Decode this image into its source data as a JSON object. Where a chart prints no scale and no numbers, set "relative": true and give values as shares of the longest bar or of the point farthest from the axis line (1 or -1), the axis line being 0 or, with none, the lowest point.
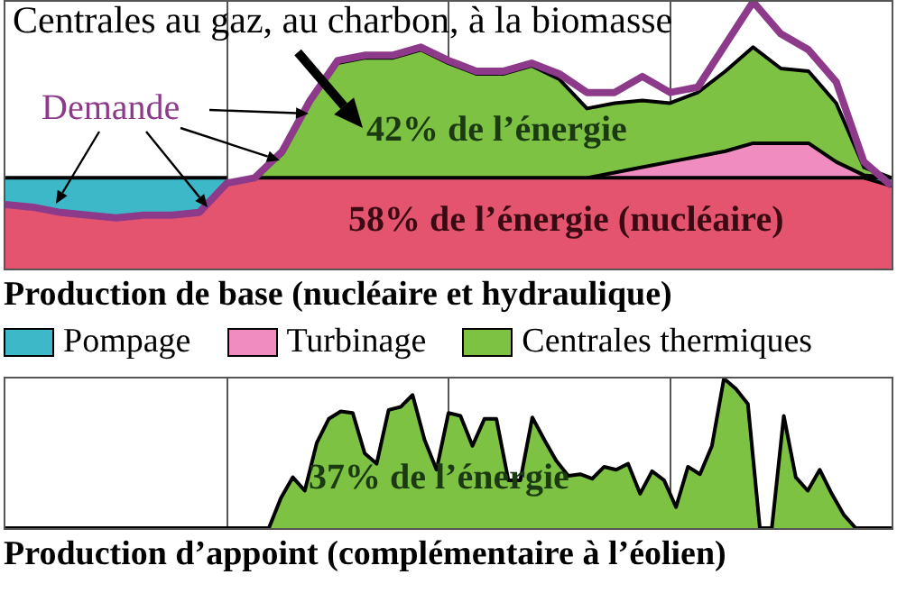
{
  "chart_data": [
    {
      "type": "area",
      "relative": true,
      "title": "Production de base (nucléaire et hydraulique)",
      "categories": [
        null,
        null,
        null,
        null,
        null,
        null,
        null,
        null,
        null,
        null,
        null,
        null,
        null,
        null,
        null,
        null,
        null,
        null,
        null,
        null,
        null,
        null,
        null,
        null,
        null,
        null,
        null,
        null,
        null,
        null,
        null,
        null,
        null
      ],
      "series": [
        {
          "name": "Centrales thermiques",
          "color": "#7dc242",
          "values": [
            null,
            null,
            null,
            null,
            null,
            null,
            null,
            null,
            null,
            0.34,
            0.43,
            0.62,
            0.77,
            0.79,
            0.79,
            0.82,
            0.77,
            0.73,
            0.73,
            0.76,
            0.71,
            0.6,
            0.62,
            0.63,
            0.62,
            0.66,
            0.74,
            0.83,
            0.75,
            0.74,
            0.62,
            0.38,
            0.34
          ]
        },
        {
          "name": "Turbinage",
          "color": "#f08cc0",
          "values": [
            null,
            null,
            null,
            null,
            null,
            null,
            null,
            null,
            null,
            null,
            null,
            null,
            null,
            null,
            null,
            null,
            null,
            null,
            null,
            null,
            null,
            0.34,
            0.36,
            0.38,
            0.4,
            0.42,
            0.44,
            0.47,
            0.47,
            0.47,
            0.4,
            0.35,
            0.34
          ]
        },
        {
          "name": "Pompage",
          "color": "#3db8c8",
          "values": [
            0.34,
            0.34,
            0.34,
            0.34,
            0.34,
            0.34,
            0.34,
            0.34,
            0.34,
            null,
            null,
            null,
            null,
            null,
            null,
            null,
            null,
            null,
            null,
            null,
            null,
            null,
            null,
            null,
            null,
            null,
            null,
            null,
            null,
            null,
            null,
            0.34,
            0.34
          ]
        },
        {
          "color": "#e5546f",
          "values": [
            0.24,
            0.23,
            0.21,
            0.2,
            0.19,
            0.2,
            0.2,
            0.21,
            0.32,
            0.34,
            0.34,
            0.34,
            0.34,
            0.34,
            0.34,
            0.34,
            0.34,
            0.34,
            0.34,
            0.34,
            0.34,
            0.34,
            0.34,
            0.34,
            0.34,
            0.34,
            0.34,
            0.34,
            0.34,
            0.34,
            0.34,
            0.34,
            0.31
          ]
        },
        {
          "name": "Demande",
          "type": "line",
          "color": "#8e3a8a",
          "values": [
            0.24,
            0.23,
            0.21,
            0.2,
            0.19,
            0.2,
            0.2,
            0.21,
            0.32,
            0.34,
            0.44,
            0.63,
            0.78,
            0.8,
            0.8,
            0.83,
            0.78,
            0.74,
            0.74,
            0.77,
            0.73,
            0.66,
            0.66,
            0.72,
            0.66,
            0.68,
            0.84,
            1.0,
            0.88,
            0.82,
            0.7,
            0.4,
            0.31
          ]
        }
      ],
      "annotations": [
        "Centrales au gaz, au charbon, à la biomasse",
        "42% de l’énergie",
        "58% de l’énergie (nucléaire)"
      ],
      "legend": "bottom",
      "grid": "x"
    },
    {
      "type": "area",
      "relative": true,
      "title": "Production d’appoint (complémentaire à l’éolien)",
      "categories": [
        null,
        null,
        null,
        null,
        null,
        null,
        null,
        null,
        null,
        null,
        null,
        null,
        null,
        null,
        null,
        null,
        null,
        null,
        null,
        null,
        null,
        null,
        null,
        null,
        null,
        null,
        null,
        null,
        null,
        null,
        null,
        null,
        null,
        null,
        null,
        null,
        null,
        null,
        null,
        null,
        null,
        null,
        null,
        null,
        null,
        null,
        null,
        null,
        null,
        null,
        null,
        null,
        null,
        null,
        null,
        null,
        null,
        null,
        null,
        null,
        null,
        null,
        null,
        null,
        null,
        null,
        null,
        null,
        null,
        null,
        null,
        null,
        null,
        null,
        null
      ],
      "values": [
        0,
        0,
        0,
        0,
        0,
        0,
        0,
        0,
        0,
        0,
        0,
        0,
        0,
        0,
        0,
        0,
        0,
        0,
        0,
        0,
        0,
        0,
        0,
        0.2,
        0.34,
        0.25,
        0.57,
        0.73,
        0.78,
        0.77,
        0.5,
        0.43,
        0.79,
        0.81,
        0.89,
        0.59,
        0.39,
        0.77,
        0.75,
        0.55,
        0.73,
        0.73,
        0.32,
        0.32,
        0.74,
        0.59,
        0.45,
        0.35,
        0.36,
        0.33,
        0.41,
        0.39,
        0.43,
        0.23,
        0.38,
        0.32,
        0.14,
        0.41,
        0.36,
        0.55,
        1.0,
        0.93,
        0.83,
        0,
        0,
        0.75,
        0.34,
        0.25,
        0.39,
        0.23,
        0.09,
        0,
        0,
        0,
        0
      ],
      "color": "#7dc242",
      "annotations": [
        "37% de l’énergie"
      ],
      "grid": "x"
    }
  ]
}
